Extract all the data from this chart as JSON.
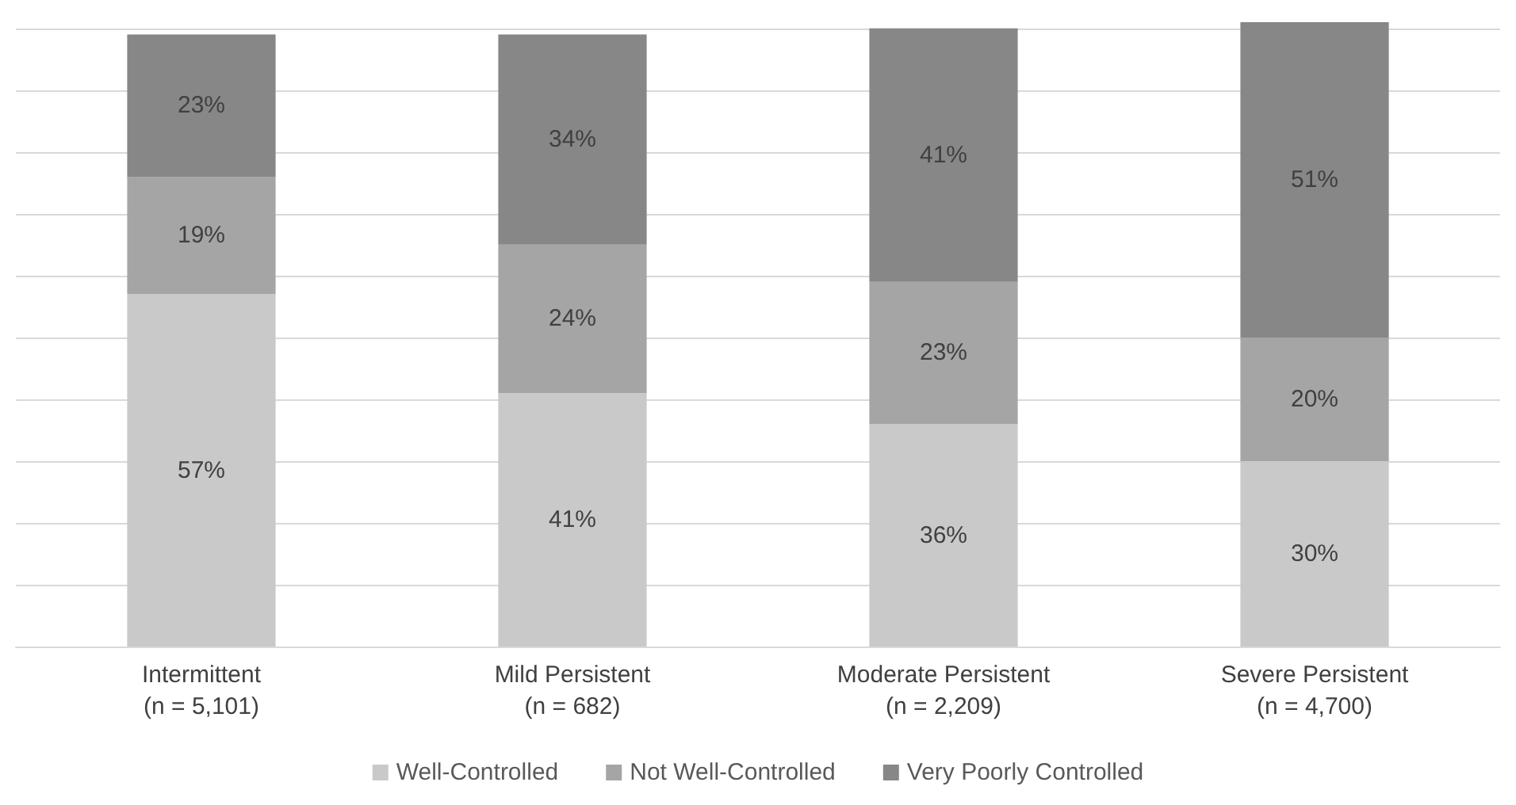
{
  "chart_data": {
    "type": "bar",
    "stacked": true,
    "categories": [
      "Intermittent\n(n = 5,101)",
      "Mild Persistent\n(n = 682)",
      "Moderate Persistent\n(n = 2,209)",
      "Severe Persistent\n(n = 4,700)"
    ],
    "series": [
      {
        "name": "Well-Controlled",
        "color": "#c9c9c9",
        "values": [
          57,
          41,
          36,
          30
        ],
        "value_labels": [
          "57%",
          "41%",
          "36%",
          "30%"
        ]
      },
      {
        "name": "Not Well-Controlled",
        "color": "#a5a5a5",
        "values": [
          19,
          24,
          23,
          20
        ],
        "value_labels": [
          "19%",
          "24%",
          "23%",
          "20%"
        ]
      },
      {
        "name": "Very Poorly Controlled",
        "color": "#878787",
        "values": [
          23,
          34,
          41,
          51
        ],
        "value_labels": [
          "23%",
          "34%",
          "41%",
          "51%"
        ]
      }
    ],
    "ylim": [
      0,
      101
    ],
    "yticks": [
      {
        "value": 0,
        "label": null
      },
      {
        "value": 10,
        "label": null
      },
      {
        "value": 20,
        "label": null
      },
      {
        "value": 30,
        "label": null
      },
      {
        "value": 40,
        "label": null
      },
      {
        "value": 50,
        "label": null
      },
      {
        "value": 60,
        "label": null
      },
      {
        "value": 70,
        "label": null
      },
      {
        "value": 80,
        "label": null
      },
      {
        "value": 90,
        "label": null
      },
      {
        "value": 100,
        "label": null
      }
    ],
    "tick_labels": "x",
    "grid": "y",
    "legend": "bottom"
  }
}
